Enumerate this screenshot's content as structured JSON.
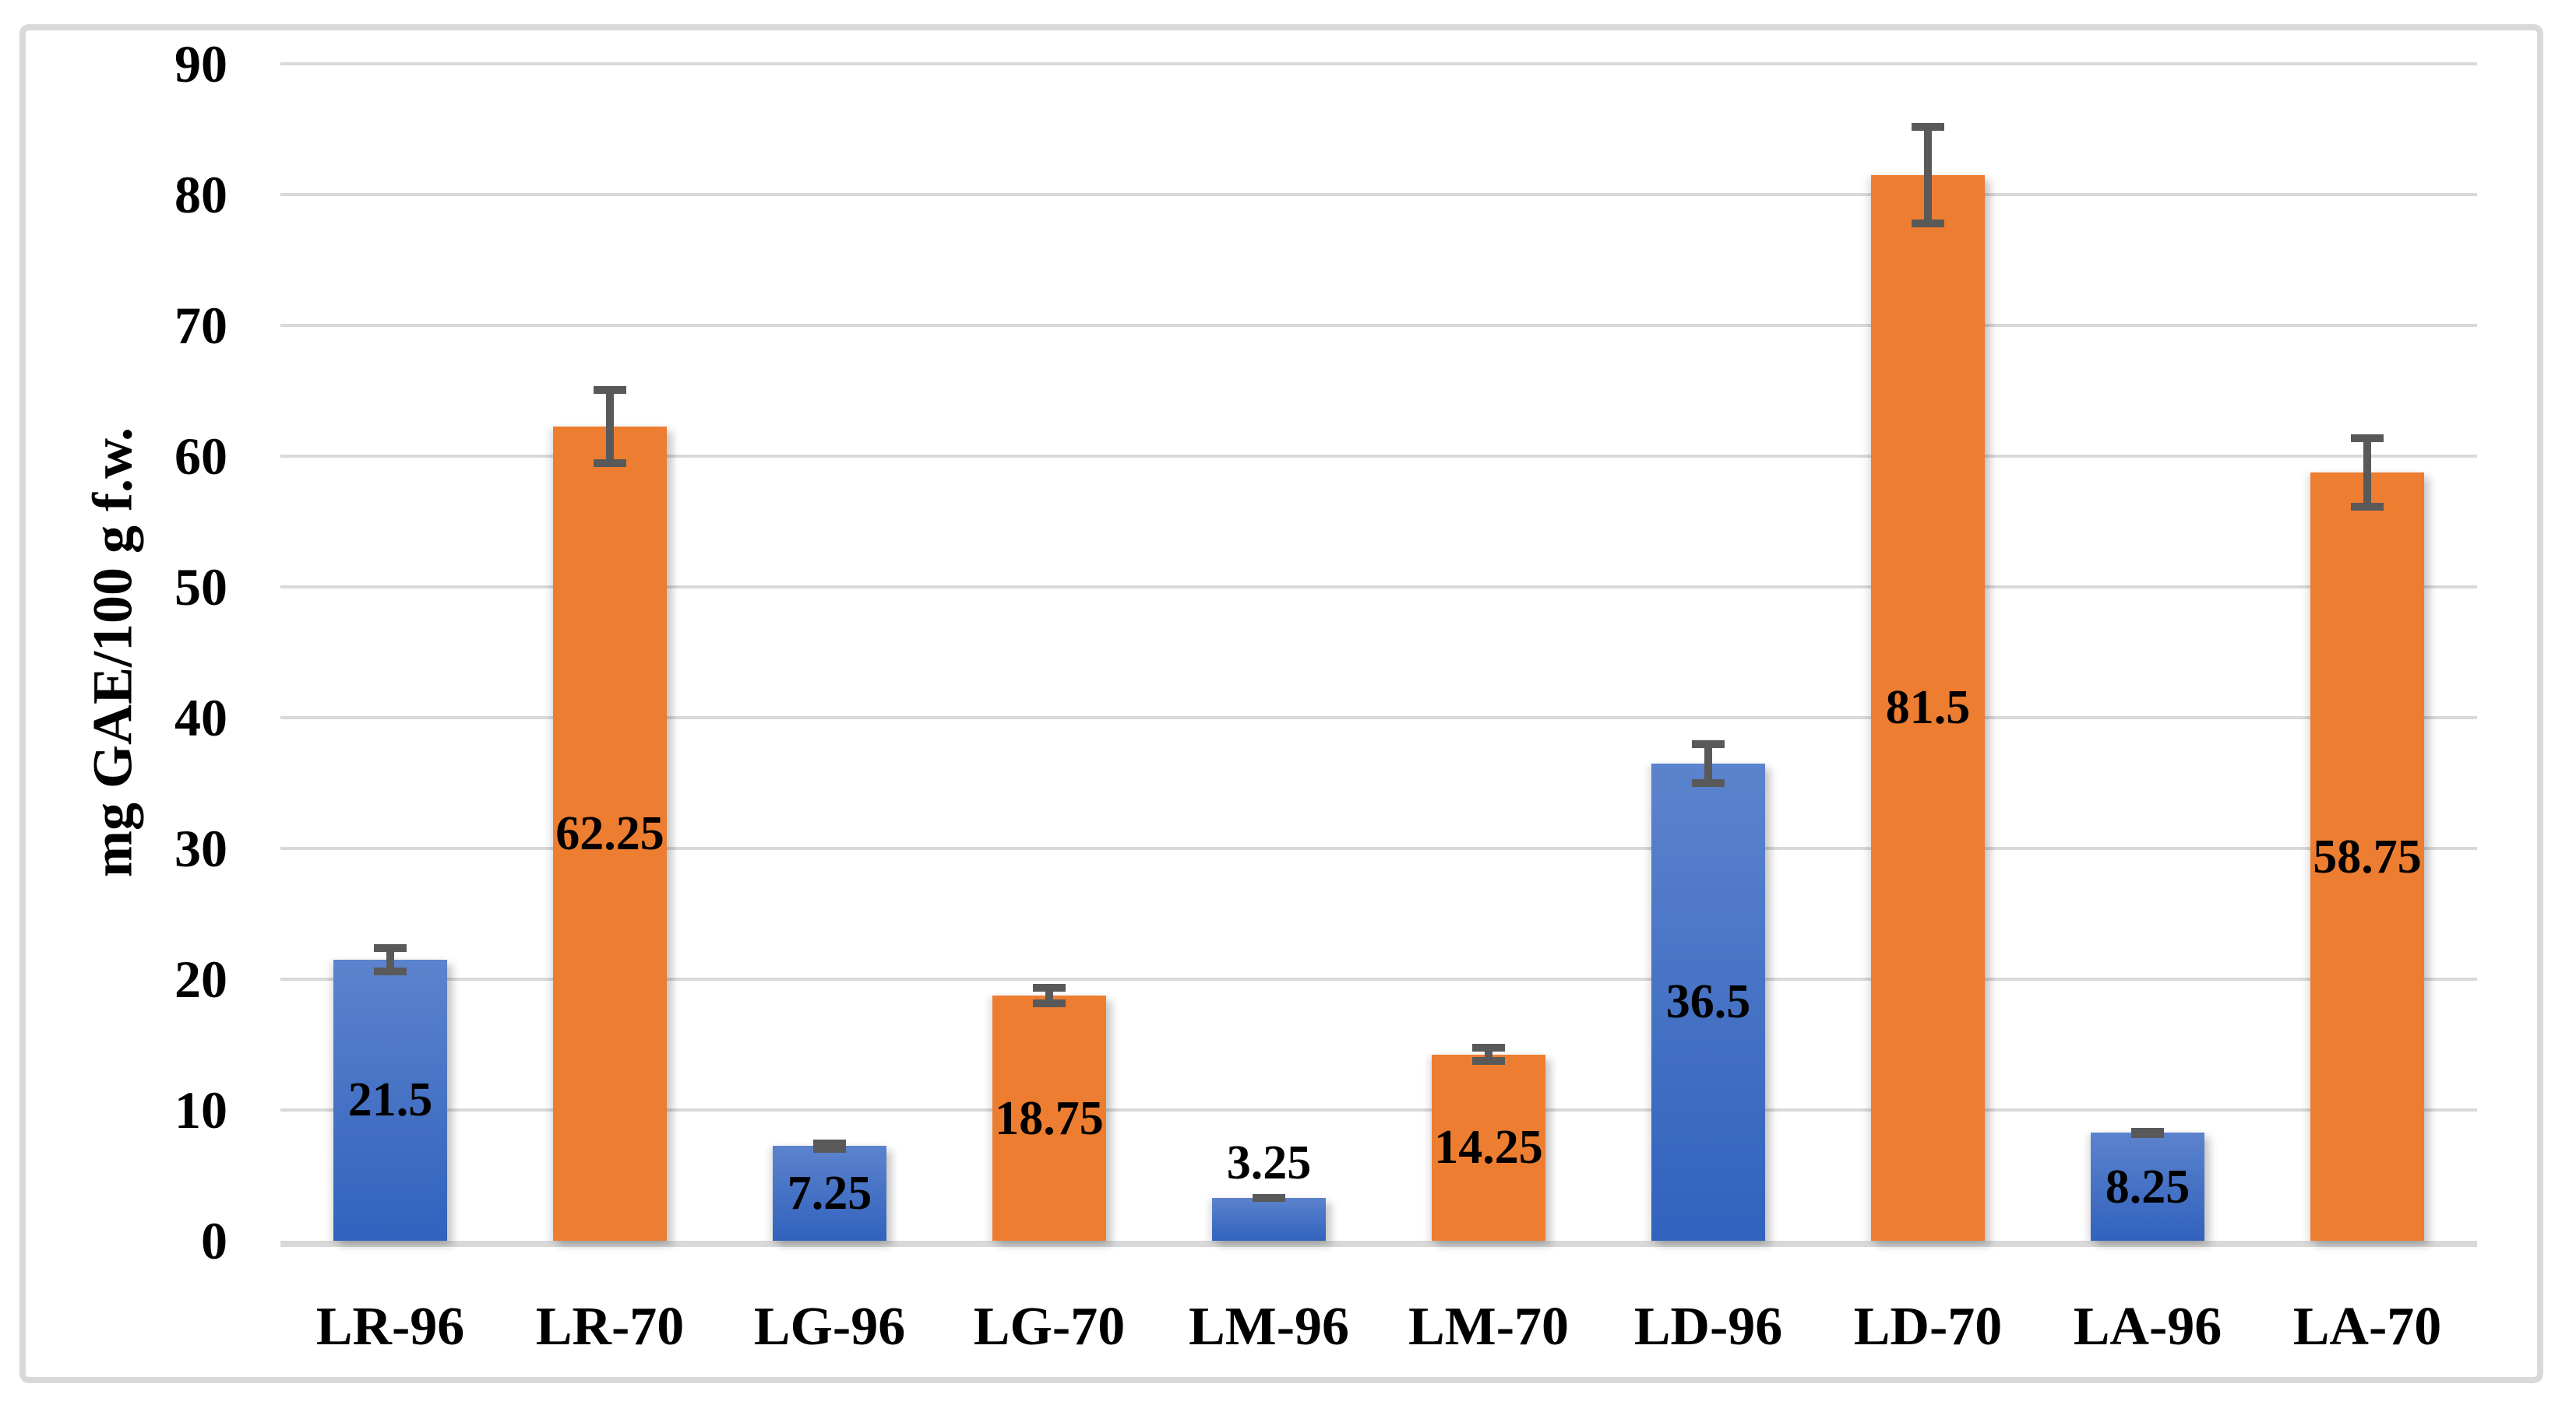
{
  "chart_data": {
    "type": "bar",
    "title": "",
    "xlabel": "",
    "ylabel": "mg GAE/100 g f.w.",
    "ylim": [
      0,
      90
    ],
    "yticks": [
      0,
      10,
      20,
      30,
      40,
      50,
      60,
      70,
      80,
      90
    ],
    "grid": true,
    "legend_position": "none",
    "categories": [
      "LR-96",
      "LR-70",
      "LG-96",
      "LG-70",
      "LM-96",
      "LM-70",
      "LD-96",
      "LD-70",
      "LA-96",
      "LA-70"
    ],
    "values": [
      21.5,
      62.25,
      7.25,
      18.75,
      3.25,
      14.25,
      36.5,
      81.5,
      8.25,
      58.75
    ],
    "value_labels": [
      "21.5",
      "62.25",
      "7.25",
      "18.75",
      "3.25",
      "14.25",
      "36.5",
      "81.5",
      "8.25",
      "58.75"
    ],
    "error_bars": [
      1.2,
      3.1,
      0.5,
      0.9,
      0.3,
      0.8,
      1.8,
      4.0,
      0.4,
      2.9
    ],
    "bar_colors": [
      "blue",
      "orange",
      "blue",
      "orange",
      "blue",
      "orange",
      "blue",
      "orange",
      "blue",
      "orange"
    ],
    "label_positions": [
      "center",
      "center",
      "center",
      "center",
      "above",
      "center",
      "center",
      "center",
      "center",
      "center"
    ],
    "colors": {
      "bar_blue_top": "#5C83CD",
      "bar_blue_bottom": "#3162BD",
      "bar_orange": "#ED7D31",
      "error_bar": "#595959",
      "gridline": "#D9D9D9",
      "axis_line": "#D9D9D9",
      "frame_border": "#D9D9D9",
      "text": "#000000"
    }
  }
}
